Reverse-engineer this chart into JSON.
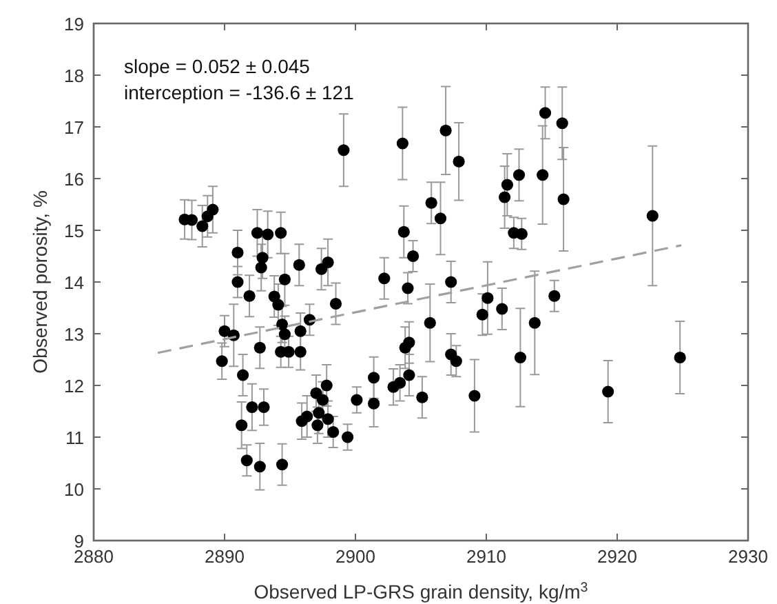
{
  "chart_data": {
    "type": "scatter",
    "xlabel": "Observed LP-GRS grain density, kg/m$^{3}$",
    "ylabel": "Observed porosity, %",
    "annotations": [
      "slope = 0.052 ± 0.045",
      "interception = -136.6 ± 121"
    ],
    "xlim": [
      2880,
      2930
    ],
    "xticks": [
      2880,
      2890,
      2900,
      2910,
      2920,
      2930
    ],
    "ylim": [
      9,
      19
    ],
    "yticks": [
      9,
      10,
      11,
      12,
      13,
      14,
      15,
      16,
      17,
      18,
      19
    ],
    "grid": false,
    "series": [
      {
        "color": "#000000",
        "marker": "circle",
        "x": [
          2886.95,
          2887.5,
          2888.3,
          2888.7,
          2889.1,
          2889.8,
          2890.0,
          2890.7,
          2891.0,
          2891.0,
          2891.4,
          2891.3,
          2891.7,
          2891.9,
          2892.1,
          2892.5,
          2892.7,
          2892.7,
          2892.8,
          2892.9,
          2893.0,
          2893.3,
          2893.8,
          2894.1,
          2894.3,
          2894.3,
          2894.4,
          2894.4,
          2894.6,
          2894.6,
          2894.9,
          2895.7,
          2895.8,
          2895.8,
          2895.9,
          2896.3,
          2896.5,
          2897.0,
          2897.1,
          2897.2,
          2897.4,
          2897.5,
          2897.8,
          2897.9,
          2897.9,
          2898.3,
          2898.5,
          2899.1,
          2899.4,
          2900.1,
          2901.4,
          2901.4,
          2902.2,
          2902.9,
          2903.4,
          2903.6,
          2903.7,
          2903.8,
          2904.0,
          2904.1,
          2904.1,
          2904.4,
          2905.1,
          2905.7,
          2905.8,
          2906.5,
          2906.9,
          2907.3,
          2907.3,
          2907.7,
          2907.9,
          2909.1,
          2909.7,
          2910.1,
          2911.2,
          2911.4,
          2911.6,
          2912.1,
          2912.7,
          2912.5,
          2912.6,
          2913.7,
          2914.3,
          2914.5,
          2915.2,
          2915.8,
          2915.9,
          2919.3,
          2922.7,
          2924.8
        ],
        "values": [
          15.21,
          15.2,
          15.08,
          15.27,
          15.4,
          12.47,
          13.05,
          12.97,
          14.0,
          14.57,
          12.2,
          11.23,
          10.55,
          13.73,
          11.58,
          14.95,
          12.73,
          10.43,
          14.28,
          14.47,
          11.58,
          14.92,
          13.72,
          13.56,
          14.95,
          12.65,
          10.47,
          13.18,
          14.05,
          12.99,
          12.65,
          14.33,
          13.05,
          12.65,
          11.31,
          11.4,
          13.27,
          11.85,
          11.23,
          11.47,
          14.25,
          11.72,
          12.0,
          14.38,
          11.35,
          11.1,
          13.58,
          16.55,
          11.0,
          11.72,
          12.15,
          11.65,
          14.07,
          11.97,
          12.05,
          16.68,
          14.97,
          12.73,
          13.88,
          12.83,
          12.2,
          14.5,
          11.77,
          13.21,
          15.53,
          15.23,
          16.93,
          14.0,
          12.6,
          12.47,
          16.33,
          11.8,
          13.37,
          13.69,
          13.48,
          15.64,
          15.88,
          14.95,
          14.93,
          16.07,
          12.54,
          13.21,
          16.07,
          17.27,
          13.73,
          17.07,
          15.6,
          11.88,
          15.28,
          12.54
        ],
        "errors": [
          0.38,
          0.38,
          0.4,
          0.4,
          0.45,
          0.35,
          0.3,
          0.6,
          0.3,
          0.43,
          0.4,
          0.45,
          0.3,
          0.4,
          0.45,
          0.45,
          0.4,
          0.45,
          0.45,
          0.4,
          0.35,
          0.45,
          0.4,
          0.4,
          0.4,
          0.3,
          0.4,
          0.35,
          0.5,
          0.35,
          0.3,
          0.4,
          0.35,
          0.35,
          0.35,
          0.4,
          0.3,
          0.35,
          0.35,
          0.4,
          0.4,
          0.35,
          0.4,
          0.45,
          0.35,
          0.3,
          0.4,
          0.7,
          0.25,
          0.25,
          0.4,
          0.45,
          0.4,
          0.35,
          0.35,
          0.7,
          0.5,
          0.4,
          0.3,
          0.4,
          0.4,
          0.3,
          0.4,
          0.75,
          0.4,
          0.7,
          0.85,
          0.4,
          0.4,
          0.3,
          0.75,
          0.7,
          0.4,
          0.7,
          0.4,
          0.6,
          0.6,
          0.3,
          0.3,
          0.5,
          0.95,
          1.0,
          0.95,
          0.5,
          0.3,
          0.7,
          1.0,
          0.6,
          1.35,
          0.7
        ]
      },
      {
        "type": "line",
        "color": "#a0a0a0",
        "line_style": "dashed",
        "x": [
          2884.9,
          2924.9
        ],
        "values": [
          12.63,
          14.71
        ]
      }
    ]
  }
}
